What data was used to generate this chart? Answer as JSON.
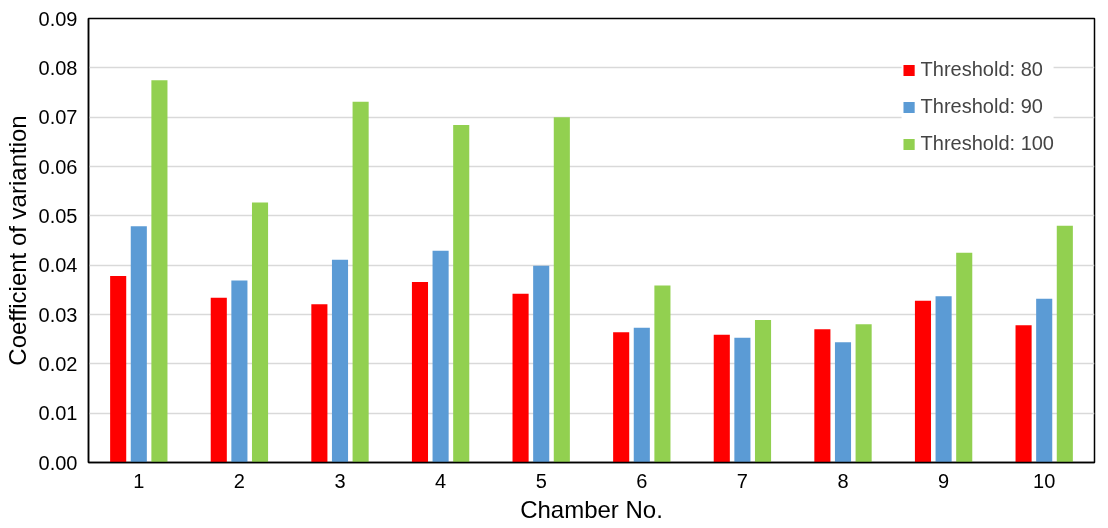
{
  "chart_data": {
    "type": "bar",
    "xlabel": "Chamber No.",
    "ylabel": "Coefficient of variantion",
    "categories": [
      "1",
      "2",
      "3",
      "4",
      "5",
      "6",
      "7",
      "8",
      "9",
      "10"
    ],
    "series": [
      {
        "name": "Threshold: 80",
        "color": "#ff0000",
        "values": [
          0.0378,
          0.0334,
          0.0321,
          0.0366,
          0.0342,
          0.0264,
          0.0259,
          0.027,
          0.0328,
          0.0278
        ]
      },
      {
        "name": "Threshold: 90",
        "color": "#5b9bd5",
        "values": [
          0.0479,
          0.0369,
          0.0411,
          0.0429,
          0.0399,
          0.0273,
          0.0253,
          0.0244,
          0.0337,
          0.0332
        ]
      },
      {
        "name": "Threshold: 100",
        "color": "#92d050",
        "values": [
          0.0775,
          0.0527,
          0.0731,
          0.0684,
          0.07,
          0.0359,
          0.0289,
          0.028,
          0.0425,
          0.048
        ]
      }
    ],
    "ylim": [
      0,
      0.09
    ],
    "yticks": [
      {
        "value": 0,
        "label": "0.00"
      },
      {
        "value": 0.01,
        "label": "0.01"
      },
      {
        "value": 0.02,
        "label": "0.02"
      },
      {
        "value": 0.03,
        "label": "0.03"
      },
      {
        "value": 0.04,
        "label": "0.04"
      },
      {
        "value": 0.05,
        "label": "0.05"
      },
      {
        "value": 0.06,
        "label": "0.06"
      },
      {
        "value": 0.07,
        "label": "0.07"
      },
      {
        "value": 0.08,
        "label": "0.08"
      },
      {
        "value": 0.09,
        "label": "0.09"
      }
    ],
    "grid": "y",
    "legend": "top right"
  }
}
